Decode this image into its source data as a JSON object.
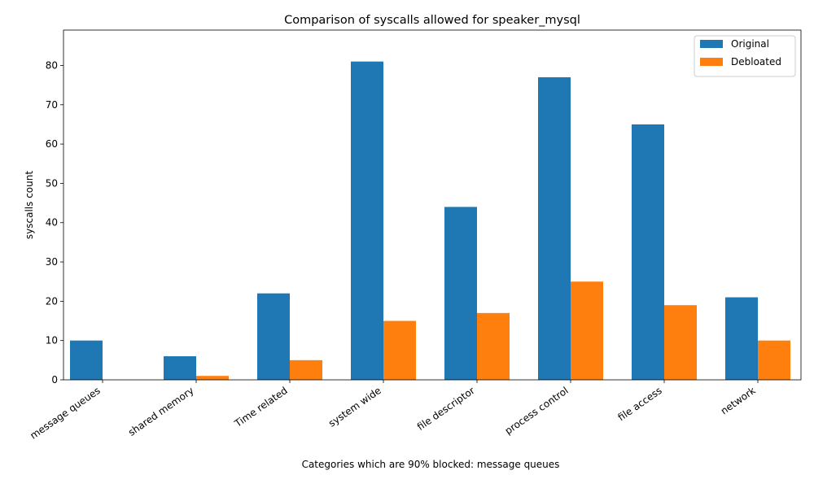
{
  "chart_data": {
    "type": "bar",
    "title": "Comparison of syscalls allowed for speaker_mysql",
    "xlabel": "Categories which are 90% blocked: message queues",
    "ylabel": "syscalls count",
    "categories": [
      "message queues",
      "shared memory",
      "Time related",
      "system wide",
      "file descriptor",
      "process control",
      "file access",
      "network"
    ],
    "series": [
      {
        "name": "Original",
        "color": "#1f77b4",
        "values": [
          10,
          6,
          22,
          81,
          44,
          77,
          65,
          21
        ]
      },
      {
        "name": "Debloated",
        "color": "#ff7f0e",
        "values": [
          0,
          1,
          5,
          15,
          17,
          25,
          19,
          10
        ]
      }
    ],
    "ylim": [
      0,
      89
    ],
    "yticks": [
      0,
      10,
      20,
      30,
      40,
      50,
      60,
      70,
      80
    ],
    "legend": "top-right",
    "grid": false
  }
}
